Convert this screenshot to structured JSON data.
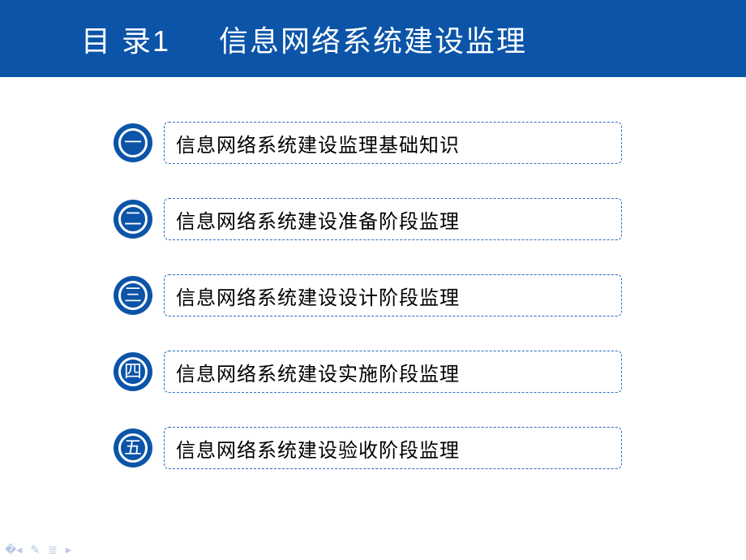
{
  "colors": {
    "header_bg": "#0b54a8",
    "badge_outer": "#0b54a8",
    "badge_inner_bg": "#ffffff",
    "badge_fill": "#0b54a8",
    "item_border": "#2a6fc0",
    "footer_icon": "#b8c6e0"
  },
  "header": {
    "label": "目 录1",
    "title": "信息网络系统建设监理"
  },
  "toc": {
    "items": [
      {
        "num": "一",
        "text": "信息网络系统建设监理基础知识"
      },
      {
        "num": "二",
        "text": "信息网络系统建设准备阶段监理"
      },
      {
        "num": "三",
        "text": "信息网络系统建设设计阶段监理"
      },
      {
        "num": "四",
        "text": "信息网络系统建设实施阶段监理"
      },
      {
        "num": "五",
        "text": "信息网络系统建设验收阶段监理"
      }
    ]
  },
  "footer": {
    "icons": [
      "�◂",
      "✎",
      "≣",
      "▸"
    ]
  }
}
